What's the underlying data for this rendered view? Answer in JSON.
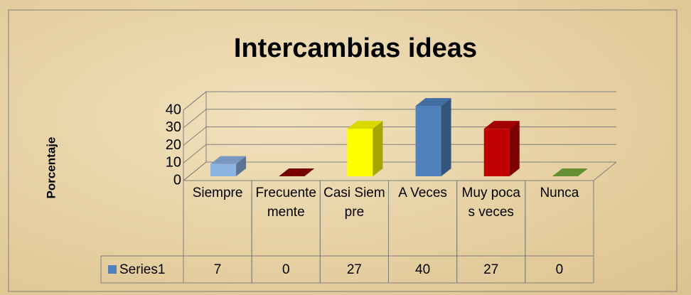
{
  "chart_data": {
    "type": "bar3d",
    "title": "Intercambias ideas",
    "y_label": "Porcentaje",
    "categories": [
      "Siempre",
      "Frecuentemente",
      "Casi Siempre",
      "A Veces",
      "Muy pocas veces",
      "Nunca"
    ],
    "series": [
      {
        "name": "Series1",
        "color": "#4f81bd",
        "values": [
          7,
          0,
          27,
          40,
          27,
          0
        ],
        "point_colors": [
          "#8db3e2",
          "#8b0000",
          "#ffff00",
          "#4f81bd",
          "#c00000",
          "#77a83a"
        ]
      }
    ],
    "ylim": [
      0,
      40
    ],
    "yticks": [
      0,
      10,
      20,
      30,
      40
    ],
    "grid": true,
    "data_table": true
  }
}
